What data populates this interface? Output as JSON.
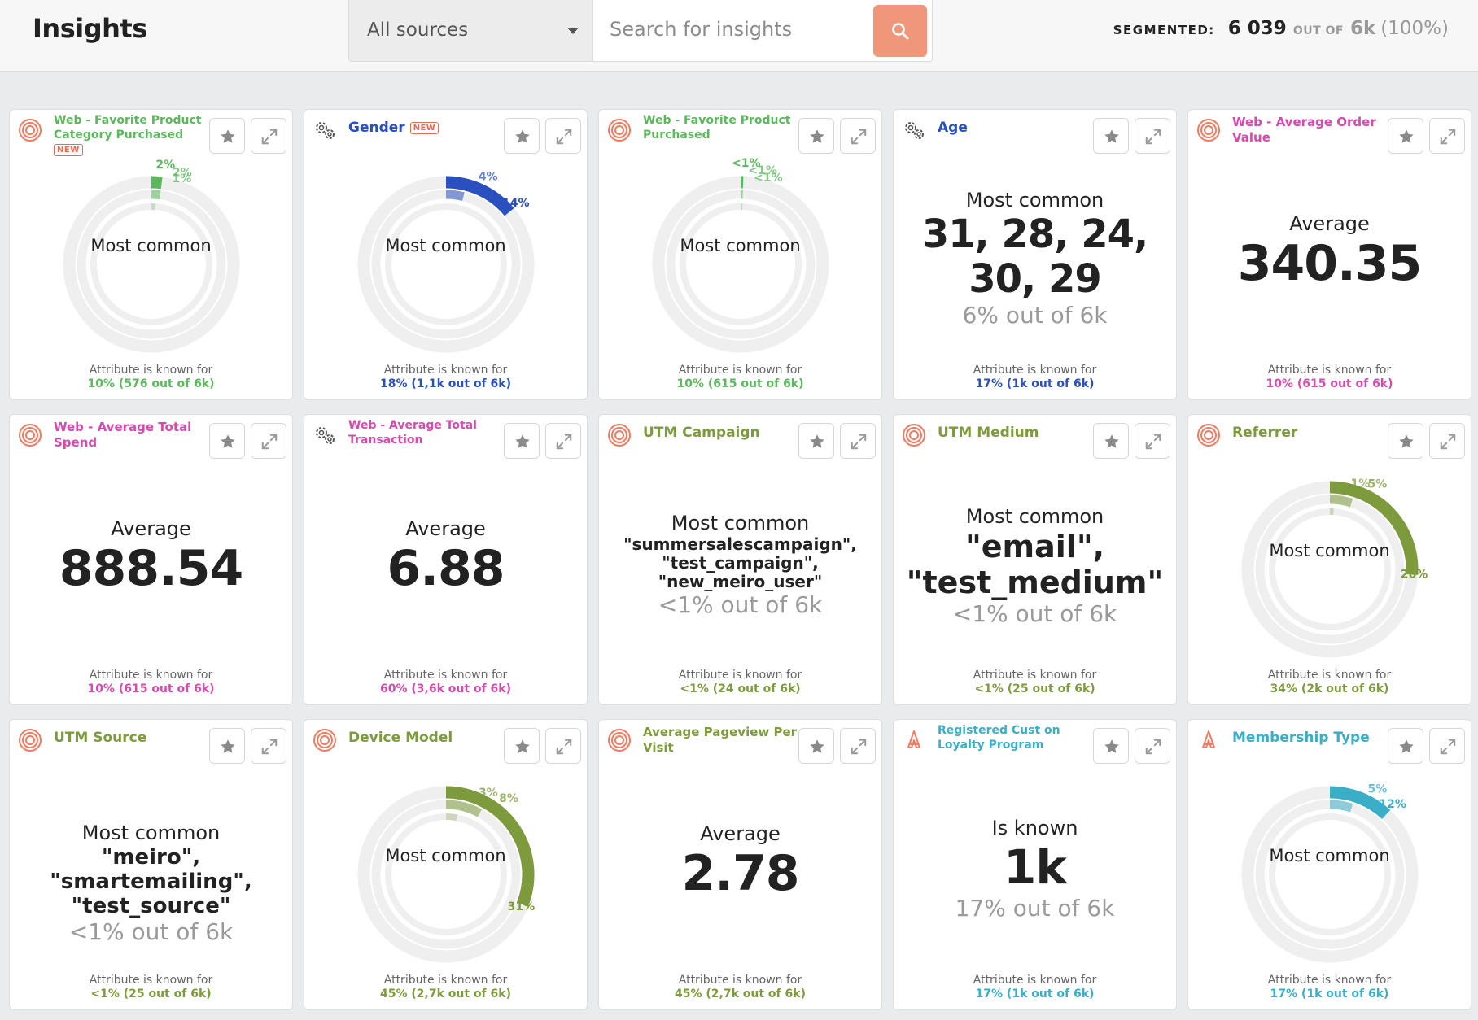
{
  "header": {
    "title": "Insights",
    "source_select": "All sources",
    "search_placeholder": "Search for insights",
    "segmented_label": "SEGMENTED:",
    "segmented_count": "6 039",
    "segmented_outof": "OUT OF",
    "segmented_total": "6k",
    "segmented_pct": "(100%)"
  },
  "colors": {
    "green": "#5cb85c",
    "blue": "#2a4fbe",
    "pink": "#d64aae",
    "olive": "#7d9b3d",
    "teal": "#3aaec6",
    "accent_orange": "#f0977b",
    "ring_gray": "#efefef"
  },
  "footer_label": "Attribute is known for",
  "cards": [
    {
      "title": "Web - Favorite Product Category Purchased",
      "badge": "NEW",
      "source_icon": "meiro-web-icon",
      "type": "donut",
      "center": "Most common",
      "rings": [
        {
          "pct": "2%",
          "value": 0.02
        },
        {
          "pct": "2%",
          "value": 0.02
        },
        {
          "pct": "1%",
          "value": 0.01
        }
      ],
      "known": "10% (576 out of 6k)"
    },
    {
      "title": "Gender",
      "badge": "NEW",
      "source_icon": "gears-icon",
      "type": "donut",
      "center": "Most common",
      "rings": [
        {
          "pct": "14%",
          "value": 0.14
        },
        {
          "pct": "4%",
          "value": 0.04
        }
      ],
      "known": "18% (1,1k out of 6k)"
    },
    {
      "title": "Web - Favorite Product Purchased",
      "badge": "",
      "source_icon": "meiro-web-icon",
      "type": "donut",
      "center": "Most common",
      "rings": [
        {
          "pct": "<1%",
          "value": 0.005
        },
        {
          "pct": "<1%",
          "value": 0.005
        },
        {
          "pct": "<1%",
          "value": 0.005
        }
      ],
      "known": "10% (615 out of 6k)"
    },
    {
      "title": "Age",
      "badge": "",
      "source_icon": "gears-icon",
      "type": "common",
      "heading": "Most common",
      "value": "31, 28, 24, 30, 29",
      "sub": "6% out of 6k",
      "known": "17% (1k out of 6k)"
    },
    {
      "title": "Web - Average Order Value",
      "badge": "",
      "source_icon": "meiro-web-icon",
      "type": "average",
      "heading": "Average",
      "value": "340.35",
      "known": "10% (615 out of 6k)"
    },
    {
      "title": "Web - Average Total Spend",
      "badge": "",
      "source_icon": "meiro-web-icon",
      "type": "average",
      "heading": "Average",
      "value": "888.54",
      "known": "10% (615 out of 6k)"
    },
    {
      "title": "Web - Average Total Transaction",
      "badge": "",
      "source_icon": "gears-icon",
      "type": "average",
      "heading": "Average",
      "value": "6.88",
      "known": "60% (3,6k out of 6k)"
    },
    {
      "title": "UTM Campaign",
      "badge": "",
      "source_icon": "meiro-web-icon",
      "type": "common",
      "heading": "Most common",
      "value": "\"summersalescampaign\", \"test_campaign\", \"new_meiro_user\"",
      "sub": "<1% out of 6k",
      "known": "<1% (24 out of 6k)"
    },
    {
      "title": "UTM Medium",
      "badge": "",
      "source_icon": "meiro-web-icon",
      "type": "common",
      "heading": "Most common",
      "value": "\"email\", \"test_medium\"",
      "sub": "<1% out of 6k",
      "known": "<1% (25 out of 6k)"
    },
    {
      "title": "Referrer",
      "badge": "",
      "source_icon": "meiro-web-icon",
      "type": "donut",
      "center": "Most common",
      "rings": [
        {
          "pct": "26%",
          "value": 0.26
        },
        {
          "pct": "5%",
          "value": 0.05
        },
        {
          "pct": "1%",
          "value": 0.01
        }
      ],
      "known": "34% (2k out of 6k)"
    },
    {
      "title": "UTM Source",
      "badge": "",
      "source_icon": "meiro-web-icon",
      "type": "common",
      "heading": "Most common",
      "value": "\"meiro\", \"smartemailing\", \"test_source\"",
      "sub": "<1% out of 6k",
      "known": "<1% (25 out of 6k)"
    },
    {
      "title": "Device Model",
      "badge": "",
      "source_icon": "meiro-web-icon",
      "type": "donut",
      "center": "Most common",
      "rings": [
        {
          "pct": "31%",
          "value": 0.31
        },
        {
          "pct": "8%",
          "value": 0.08
        },
        {
          "pct": "3%",
          "value": 0.03
        }
      ],
      "known": "45% (2,7k out of 6k)"
    },
    {
      "title": "Average Pageview Per Visit",
      "badge": "",
      "source_icon": "meiro-web-icon",
      "type": "average",
      "heading": "Average",
      "value": "2.78",
      "known": "45% (2,7k out of 6k)"
    },
    {
      "title": "Registered Cust on Loyalty Program",
      "badge": "",
      "source_icon": "loyalty-source-icon",
      "type": "common",
      "heading": "Is known",
      "value": "1k",
      "sub": "17% out of 6k",
      "known": "17% (1k out of 6k)"
    },
    {
      "title": "Membership Type",
      "badge": "",
      "source_icon": "loyalty-source-icon",
      "type": "donut",
      "center": "Most common",
      "rings": [
        {
          "pct": "12%",
          "value": 0.12
        },
        {
          "pct": "5%",
          "value": 0.05
        }
      ],
      "known": "17% (1k out of 6k)"
    }
  ]
}
